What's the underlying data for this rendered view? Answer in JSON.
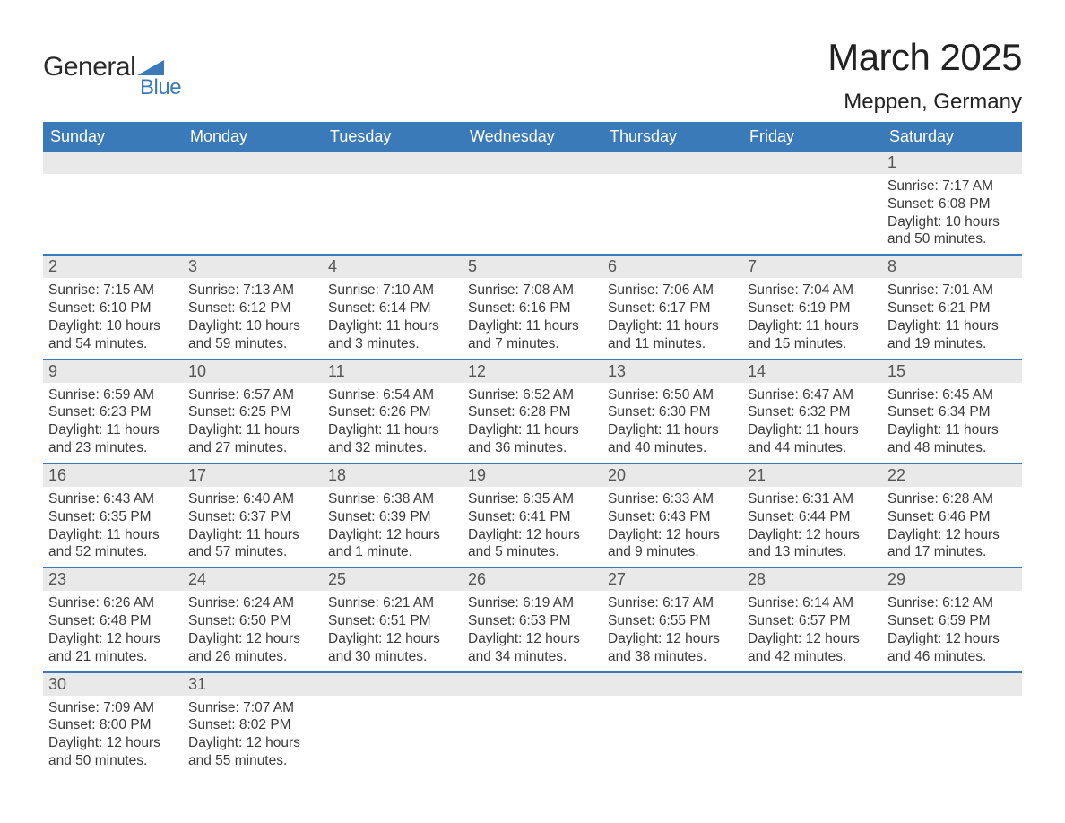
{
  "brand": {
    "name_primary": "General",
    "name_secondary": "Blue",
    "shape_color": "#3a7ab8"
  },
  "title": "March 2025",
  "location": "Meppen, Germany",
  "colors": {
    "header_bg": "#3a7ab8",
    "header_text": "#ffffff",
    "daynum_bg": "#e9e9e9",
    "daynum_text": "#555555",
    "body_text": "#3a3a3a",
    "row_divider": "#3a7ab8",
    "page_bg": "#ffffff"
  },
  "typography": {
    "title_fontsize": 42,
    "location_fontsize": 24,
    "weekday_fontsize": 18,
    "daynum_fontsize": 18,
    "cell_fontsize": 15.5
  },
  "weekdays": [
    "Sunday",
    "Monday",
    "Tuesday",
    "Wednesday",
    "Thursday",
    "Friday",
    "Saturday"
  ],
  "weeks": [
    {
      "nums": [
        "",
        "",
        "",
        "",
        "",
        "",
        "1"
      ],
      "cells": [
        null,
        null,
        null,
        null,
        null,
        null,
        {
          "sunrise": "Sunrise: 7:17 AM",
          "sunset": "Sunset: 6:08 PM",
          "day1": "Daylight: 10 hours",
          "day2": "and 50 minutes."
        }
      ]
    },
    {
      "nums": [
        "2",
        "3",
        "4",
        "5",
        "6",
        "7",
        "8"
      ],
      "cells": [
        {
          "sunrise": "Sunrise: 7:15 AM",
          "sunset": "Sunset: 6:10 PM",
          "day1": "Daylight: 10 hours",
          "day2": "and 54 minutes."
        },
        {
          "sunrise": "Sunrise: 7:13 AM",
          "sunset": "Sunset: 6:12 PM",
          "day1": "Daylight: 10 hours",
          "day2": "and 59 minutes."
        },
        {
          "sunrise": "Sunrise: 7:10 AM",
          "sunset": "Sunset: 6:14 PM",
          "day1": "Daylight: 11 hours",
          "day2": "and 3 minutes."
        },
        {
          "sunrise": "Sunrise: 7:08 AM",
          "sunset": "Sunset: 6:16 PM",
          "day1": "Daylight: 11 hours",
          "day2": "and 7 minutes."
        },
        {
          "sunrise": "Sunrise: 7:06 AM",
          "sunset": "Sunset: 6:17 PM",
          "day1": "Daylight: 11 hours",
          "day2": "and 11 minutes."
        },
        {
          "sunrise": "Sunrise: 7:04 AM",
          "sunset": "Sunset: 6:19 PM",
          "day1": "Daylight: 11 hours",
          "day2": "and 15 minutes."
        },
        {
          "sunrise": "Sunrise: 7:01 AM",
          "sunset": "Sunset: 6:21 PM",
          "day1": "Daylight: 11 hours",
          "day2": "and 19 minutes."
        }
      ]
    },
    {
      "nums": [
        "9",
        "10",
        "11",
        "12",
        "13",
        "14",
        "15"
      ],
      "cells": [
        {
          "sunrise": "Sunrise: 6:59 AM",
          "sunset": "Sunset: 6:23 PM",
          "day1": "Daylight: 11 hours",
          "day2": "and 23 minutes."
        },
        {
          "sunrise": "Sunrise: 6:57 AM",
          "sunset": "Sunset: 6:25 PM",
          "day1": "Daylight: 11 hours",
          "day2": "and 27 minutes."
        },
        {
          "sunrise": "Sunrise: 6:54 AM",
          "sunset": "Sunset: 6:26 PM",
          "day1": "Daylight: 11 hours",
          "day2": "and 32 minutes."
        },
        {
          "sunrise": "Sunrise: 6:52 AM",
          "sunset": "Sunset: 6:28 PM",
          "day1": "Daylight: 11 hours",
          "day2": "and 36 minutes."
        },
        {
          "sunrise": "Sunrise: 6:50 AM",
          "sunset": "Sunset: 6:30 PM",
          "day1": "Daylight: 11 hours",
          "day2": "and 40 minutes."
        },
        {
          "sunrise": "Sunrise: 6:47 AM",
          "sunset": "Sunset: 6:32 PM",
          "day1": "Daylight: 11 hours",
          "day2": "and 44 minutes."
        },
        {
          "sunrise": "Sunrise: 6:45 AM",
          "sunset": "Sunset: 6:34 PM",
          "day1": "Daylight: 11 hours",
          "day2": "and 48 minutes."
        }
      ]
    },
    {
      "nums": [
        "16",
        "17",
        "18",
        "19",
        "20",
        "21",
        "22"
      ],
      "cells": [
        {
          "sunrise": "Sunrise: 6:43 AM",
          "sunset": "Sunset: 6:35 PM",
          "day1": "Daylight: 11 hours",
          "day2": "and 52 minutes."
        },
        {
          "sunrise": "Sunrise: 6:40 AM",
          "sunset": "Sunset: 6:37 PM",
          "day1": "Daylight: 11 hours",
          "day2": "and 57 minutes."
        },
        {
          "sunrise": "Sunrise: 6:38 AM",
          "sunset": "Sunset: 6:39 PM",
          "day1": "Daylight: 12 hours",
          "day2": "and 1 minute."
        },
        {
          "sunrise": "Sunrise: 6:35 AM",
          "sunset": "Sunset: 6:41 PM",
          "day1": "Daylight: 12 hours",
          "day2": "and 5 minutes."
        },
        {
          "sunrise": "Sunrise: 6:33 AM",
          "sunset": "Sunset: 6:43 PM",
          "day1": "Daylight: 12 hours",
          "day2": "and 9 minutes."
        },
        {
          "sunrise": "Sunrise: 6:31 AM",
          "sunset": "Sunset: 6:44 PM",
          "day1": "Daylight: 12 hours",
          "day2": "and 13 minutes."
        },
        {
          "sunrise": "Sunrise: 6:28 AM",
          "sunset": "Sunset: 6:46 PM",
          "day1": "Daylight: 12 hours",
          "day2": "and 17 minutes."
        }
      ]
    },
    {
      "nums": [
        "23",
        "24",
        "25",
        "26",
        "27",
        "28",
        "29"
      ],
      "cells": [
        {
          "sunrise": "Sunrise: 6:26 AM",
          "sunset": "Sunset: 6:48 PM",
          "day1": "Daylight: 12 hours",
          "day2": "and 21 minutes."
        },
        {
          "sunrise": "Sunrise: 6:24 AM",
          "sunset": "Sunset: 6:50 PM",
          "day1": "Daylight: 12 hours",
          "day2": "and 26 minutes."
        },
        {
          "sunrise": "Sunrise: 6:21 AM",
          "sunset": "Sunset: 6:51 PM",
          "day1": "Daylight: 12 hours",
          "day2": "and 30 minutes."
        },
        {
          "sunrise": "Sunrise: 6:19 AM",
          "sunset": "Sunset: 6:53 PM",
          "day1": "Daylight: 12 hours",
          "day2": "and 34 minutes."
        },
        {
          "sunrise": "Sunrise: 6:17 AM",
          "sunset": "Sunset: 6:55 PM",
          "day1": "Daylight: 12 hours",
          "day2": "and 38 minutes."
        },
        {
          "sunrise": "Sunrise: 6:14 AM",
          "sunset": "Sunset: 6:57 PM",
          "day1": "Daylight: 12 hours",
          "day2": "and 42 minutes."
        },
        {
          "sunrise": "Sunrise: 6:12 AM",
          "sunset": "Sunset: 6:59 PM",
          "day1": "Daylight: 12 hours",
          "day2": "and 46 minutes."
        }
      ]
    },
    {
      "nums": [
        "30",
        "31",
        "",
        "",
        "",
        "",
        ""
      ],
      "cells": [
        {
          "sunrise": "Sunrise: 7:09 AM",
          "sunset": "Sunset: 8:00 PM",
          "day1": "Daylight: 12 hours",
          "day2": "and 50 minutes."
        },
        {
          "sunrise": "Sunrise: 7:07 AM",
          "sunset": "Sunset: 8:02 PM",
          "day1": "Daylight: 12 hours",
          "day2": "and 55 minutes."
        },
        null,
        null,
        null,
        null,
        null
      ]
    }
  ]
}
